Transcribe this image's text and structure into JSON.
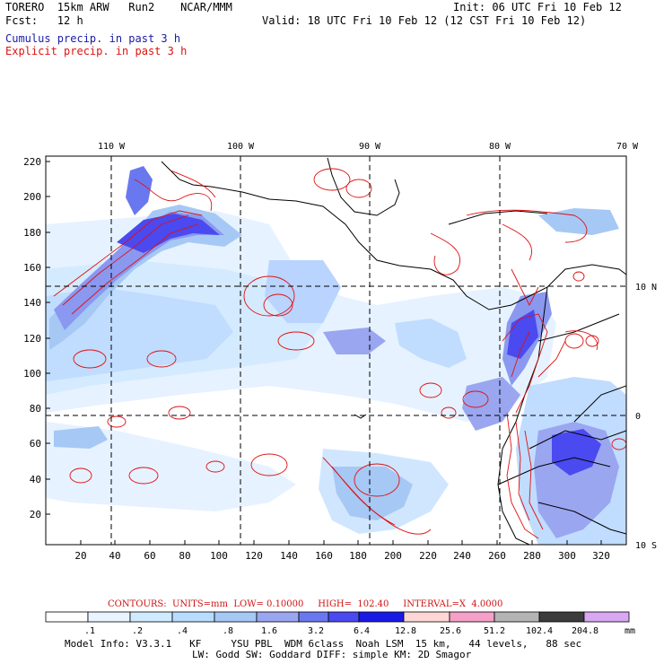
{
  "header": {
    "model": "TORERO  15km ARW   Run2    NCAR/MMM",
    "init": "Init: 06 UTC Fri 10 Feb 12",
    "fcst": "Fcst:   12 h",
    "valid": "Valid: 18 UTC Fri 10 Feb 12 (12 CST Fri 10 Feb 12)",
    "field1": "Cumulus precip. in past 3 h",
    "field2": "Explicit precip. in past 3 h"
  },
  "map": {
    "top_labels": [
      "110 W",
      "100 W",
      "90 W",
      "80 W",
      "70 W"
    ],
    "right_labels": [
      "10 N",
      "0",
      "10 S"
    ],
    "left_ticks": [
      "220",
      "200",
      "180",
      "160",
      "140",
      "120",
      "100",
      "80",
      "60",
      "40",
      "20"
    ],
    "bottom_ticks": [
      "20",
      "40",
      "60",
      "80",
      "100",
      "120",
      "140",
      "160",
      "180",
      "200",
      "220",
      "240",
      "260",
      "280",
      "300",
      "320"
    ]
  },
  "contour_info": "CONTOURS:  UNITS=mm  LOW= 0.10000     HIGH=  102.40     INTERVAL=X  4.0000",
  "colorbar": {
    "labels": [
      ".1",
      ".2",
      ".4",
      ".8",
      "1.6",
      "3.2",
      "6.4",
      "12.8",
      "25.6",
      "51.2",
      "102.4",
      "204.8"
    ],
    "unit": "mm",
    "colors": [
      "#ffffff",
      "#e8f4ff",
      "#d0eaff",
      "#b8dcff",
      "#a6c8f5",
      "#9aa6f0",
      "#6a78ef",
      "#4a4af0",
      "#1a1ae6",
      "#ffd6d6",
      "#f5a0c8",
      "#b4b4b4",
      "#3c3c3c",
      "#d8a8f2"
    ]
  },
  "footer": {
    "line1": "Model Info: V3.3.1   KF     YSU PBL  WDM 6class  Noah LSM  15 km,   44 levels,   88 sec",
    "line2": "LW: Godd SW: Goddard DIFF: simple KM: 2D Smagor"
  }
}
